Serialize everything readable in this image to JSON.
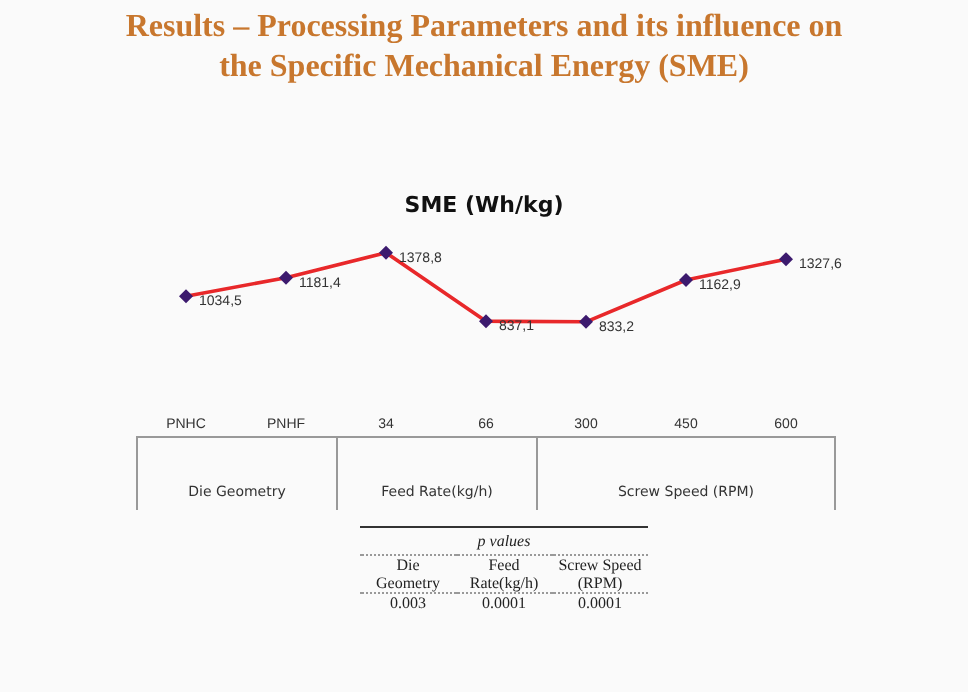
{
  "chart_data": {
    "type": "line",
    "title": "Results – Processing Parameters and its influence on the Specific Mechanical Energy (SME)",
    "subtitle": "SME (Wh/kg)",
    "categories": [
      "PNHC",
      "PNHF",
      "34",
      "66",
      "300",
      "450",
      "600"
    ],
    "series": [
      {
        "color": "#e8282a",
        "values": [
          1034.5,
          1181.4,
          1378.8,
          837.1,
          833.2,
          1162.9,
          1327.6
        ],
        "value_labels": [
          "1034,5",
          "1181,4",
          "1378,8",
          "837,1",
          "833,2",
          "1162,9",
          "1327,6"
        ]
      }
    ],
    "marker": "diamond",
    "grid": false,
    "tick_labels": "x",
    "annotations": [
      "Die Geometry",
      "Feed Rate(kg/h)",
      "Screw Speed (RPM)",
      "p values",
      "Die Geometry",
      "Feed Rate(kg/h)",
      "Screw Speed (RPM)",
      "0.003",
      "0.0001",
      "0.0001"
    ]
  }
}
